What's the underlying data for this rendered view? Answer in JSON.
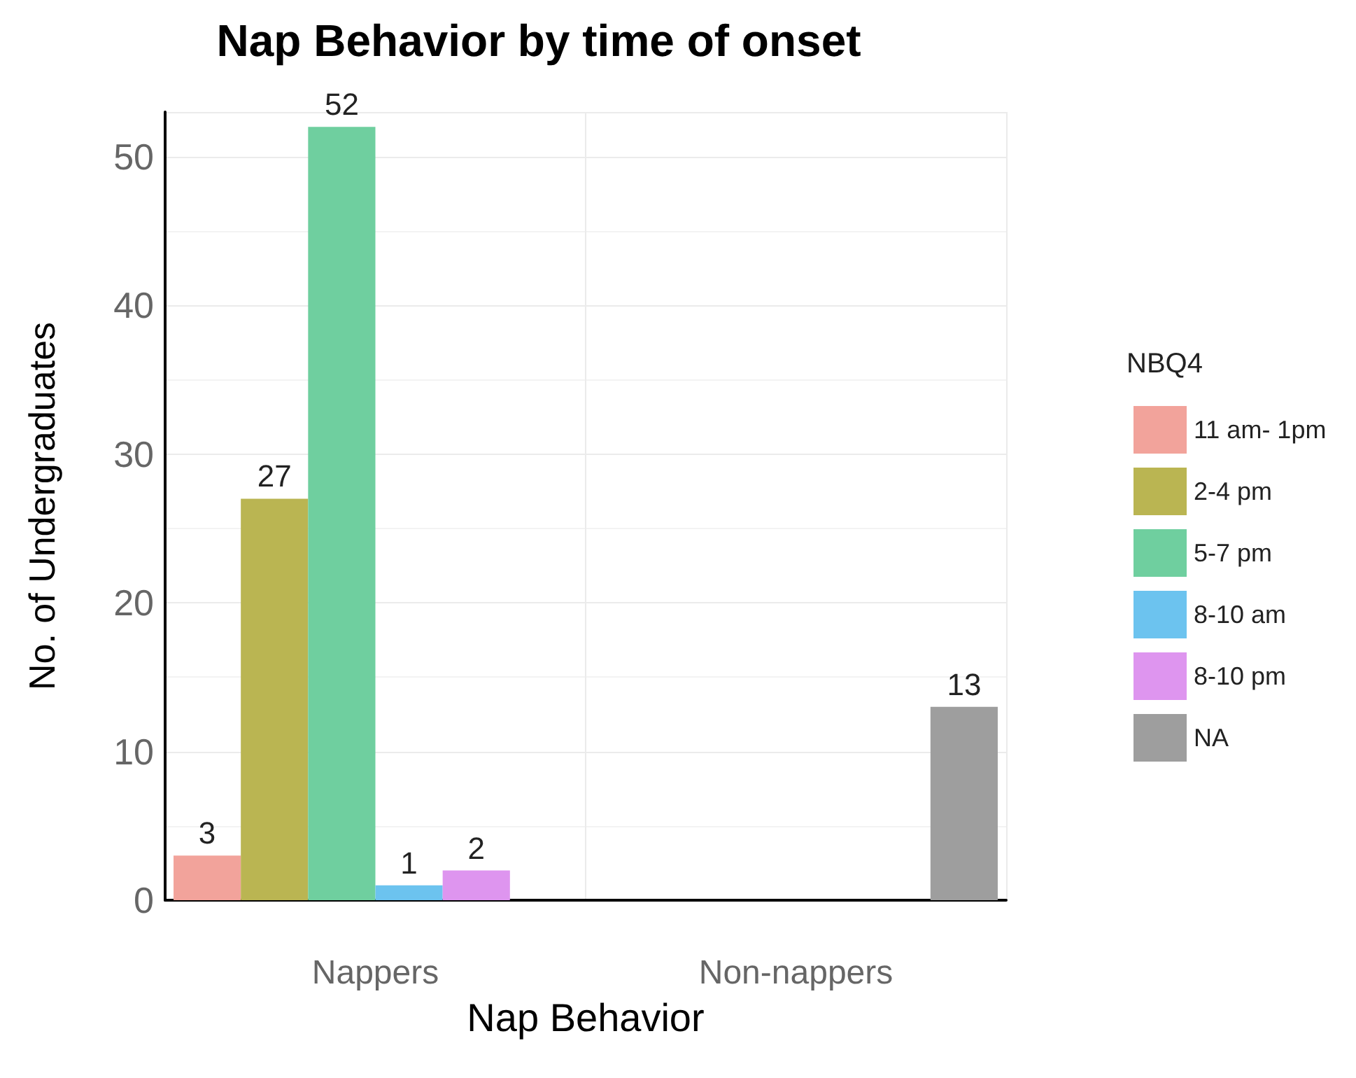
{
  "chart_data": {
    "type": "bar",
    "title": "Nap Behavior by time of onset",
    "xlabel": "Nap Behavior",
    "ylabel": "No. of Undergraduates",
    "legend_title": "NBQ4",
    "categories": [
      "Nappers",
      "Non-nappers"
    ],
    "series": [
      {
        "name": "11 am- 1pm",
        "color": "#f2a39b",
        "values": [
          3,
          null
        ]
      },
      {
        "name": "2-4 pm",
        "color": "#bab552",
        "values": [
          27,
          null
        ]
      },
      {
        "name": "5-7 pm",
        "color": "#6fcf9f",
        "values": [
          52,
          null
        ]
      },
      {
        "name": "8-10 am",
        "color": "#6cc3ef",
        "values": [
          1,
          null
        ]
      },
      {
        "name": "8-10 pm",
        "color": "#de95ef",
        "values": [
          2,
          null
        ]
      },
      {
        "name": "NA",
        "color": "#9e9e9e",
        "values": [
          null,
          13
        ]
      }
    ],
    "ylim": [
      0,
      53
    ],
    "yticks": [
      0,
      10,
      20,
      30,
      40,
      50
    ],
    "grid": true,
    "legend": "right",
    "data_labels": true
  }
}
